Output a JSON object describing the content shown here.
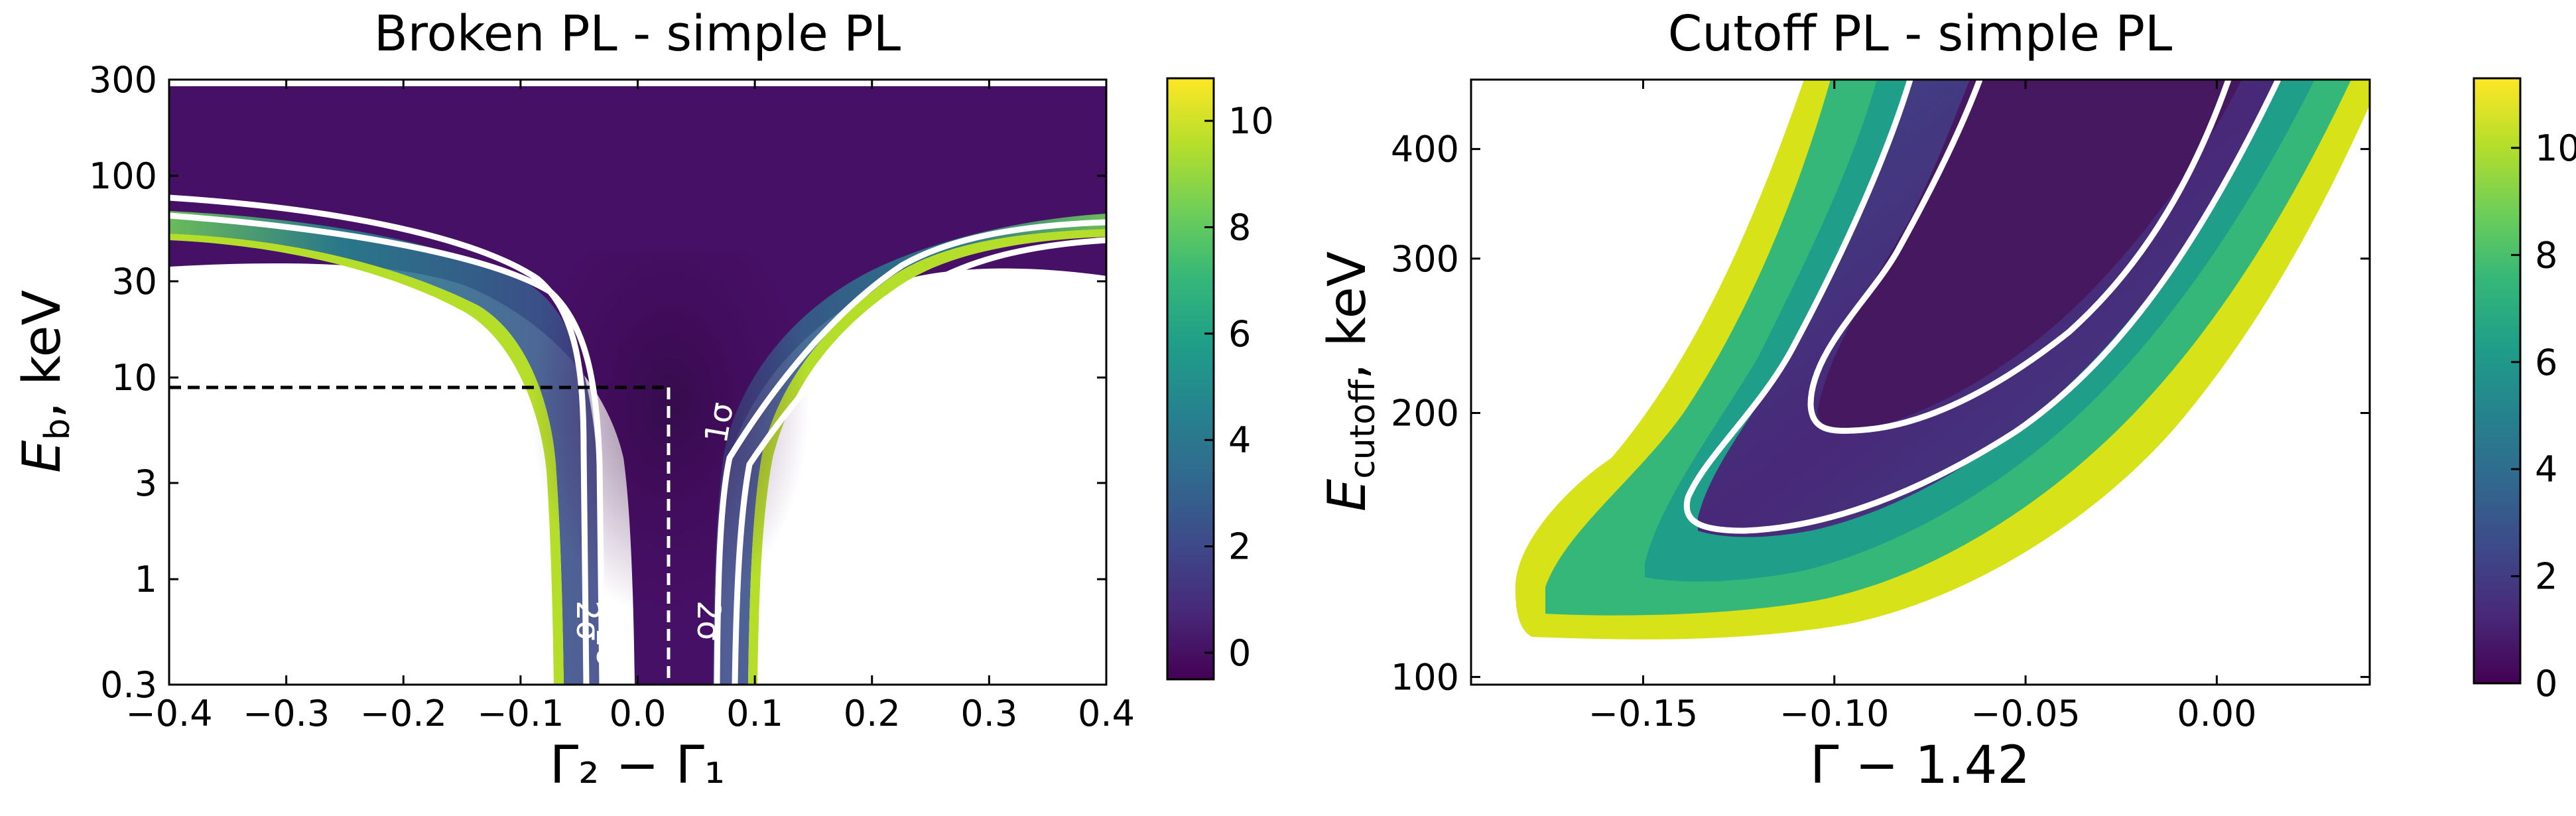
{
  "chart_data": [
    {
      "type": "heatmap",
      "title": "Broken PL - simple PL",
      "xlabel": "Γ₂ − Γ₁",
      "ylabel": "E_b, keV",
      "ylabel_main": "E",
      "ylabel_sub": "b",
      "ylabel_rest": ", keV",
      "xlim": [
        -0.4,
        0.4
      ],
      "ylim": [
        0.3,
        300
      ],
      "yscale": "log",
      "xticks": [
        -0.4,
        -0.3,
        -0.2,
        -0.1,
        0.0,
        0.1,
        0.2,
        0.3,
        0.4
      ],
      "xtick_labels": [
        "−0.4",
        "−0.3",
        "−0.2",
        "−0.1",
        "0.0",
        "0.1",
        "0.2",
        "0.3",
        "0.4"
      ],
      "yticks": [
        0.3,
        1,
        3,
        10,
        30,
        100,
        300
      ],
      "ytick_labels": [
        "0.3",
        "1",
        "3",
        "10",
        "30",
        "100",
        "300"
      ],
      "colorbar": {
        "range": [
          -0.5,
          10.8
        ],
        "ticks": [
          0,
          2,
          4,
          6,
          8,
          10
        ],
        "tick_labels": [
          "0",
          "2",
          "4",
          "6",
          "8",
          "10"
        ]
      },
      "contour_labels": [
        "1σ",
        "2σ",
        "1σ",
        "2σ"
      ],
      "annotations": [
        {
          "type": "dashed-horizontal",
          "y": 9,
          "x_from": -0.4,
          "x_to": 0.025,
          "color": "#000000"
        },
        {
          "type": "dashed-vertical",
          "x": 0.025,
          "y_from": 0.3,
          "y_to": 9,
          "color": "#ffffff"
        }
      ]
    },
    {
      "type": "heatmap",
      "title": "Cutoff PL - simple PL",
      "xlabel": "Γ − 1.42",
      "ylabel": "E_cutoff, keV",
      "ylabel_main": "E",
      "ylabel_sub": "cutoff",
      "ylabel_rest": ", keV",
      "xlim": [
        -0.195,
        0.04
      ],
      "ylim": [
        98,
        480
      ],
      "yscale": "log",
      "xticks": [
        -0.15,
        -0.1,
        -0.05,
        0.0
      ],
      "xtick_labels": [
        "−0.15",
        "−0.10",
        "−0.05",
        "0.00"
      ],
      "yticks": [
        100,
        200,
        300,
        400
      ],
      "ytick_labels": [
        "100",
        "200",
        "300",
        "400"
      ],
      "colorbar": {
        "range": [
          0,
          11.3
        ],
        "ticks": [
          0,
          2,
          4,
          6,
          8,
          10
        ],
        "tick_labels": [
          "0",
          "2",
          "4",
          "6",
          "8",
          "10"
        ]
      },
      "contour_labels": []
    }
  ],
  "colors": {
    "viridis_stops": [
      "#440154",
      "#482878",
      "#3e4989",
      "#31688e",
      "#26828e",
      "#1f9e89",
      "#35b779",
      "#6ece58",
      "#b5de2b",
      "#fde725"
    ],
    "contour": "#ffffff",
    "axis": "#000000"
  }
}
